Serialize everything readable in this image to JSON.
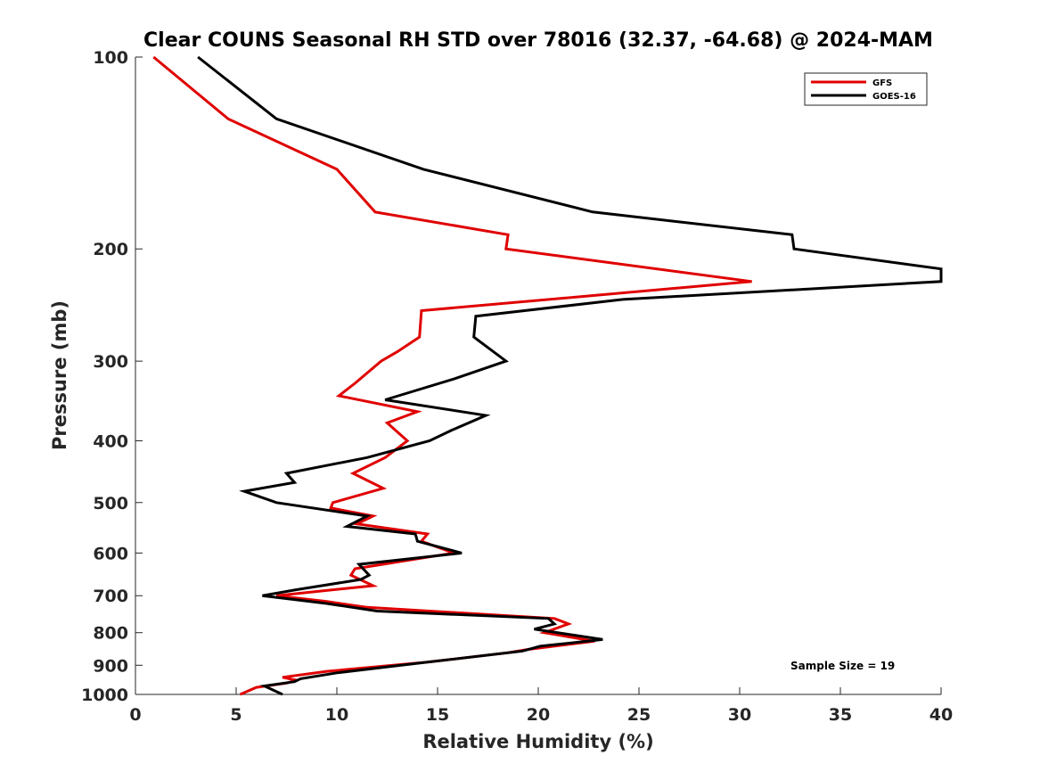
{
  "chart_data": {
    "type": "line",
    "title": "Clear COUNS Seasonal RH STD over 78016 (32.37, -64.68) @ 2024-MAM",
    "xlabel": "Relative Humidity (%)",
    "ylabel": "Pressure (mb)",
    "xlim": [
      0,
      40
    ],
    "ylim": [
      100,
      1000
    ],
    "yscale": "log",
    "y_reversed": true,
    "x_ticks": [
      0,
      5,
      10,
      15,
      20,
      25,
      30,
      35,
      40
    ],
    "y_ticks": [
      100,
      200,
      300,
      400,
      500,
      600,
      700,
      800,
      900,
      1000
    ],
    "grid": false,
    "legend": {
      "position": "top-right",
      "entries": [
        "GFS",
        "GOES-16"
      ]
    },
    "annotation": "Sample Size = 19",
    "series": [
      {
        "name": "GFS",
        "color": "#e00000",
        "points": [
          [
            0.9,
            100
          ],
          [
            4.6,
            125
          ],
          [
            10.0,
            150
          ],
          [
            11.9,
            175
          ],
          [
            18.5,
            190
          ],
          [
            18.4,
            200
          ],
          [
            30.6,
            225
          ],
          [
            14.2,
            250
          ],
          [
            14.1,
            275
          ],
          [
            13.0,
            290
          ],
          [
            12.2,
            300
          ],
          [
            10.9,
            325
          ],
          [
            10.1,
            340
          ],
          [
            14.0,
            360
          ],
          [
            12.5,
            375
          ],
          [
            13.5,
            400
          ],
          [
            12.4,
            425
          ],
          [
            10.8,
            450
          ],
          [
            12.3,
            475
          ],
          [
            9.8,
            500
          ],
          [
            9.7,
            510
          ],
          [
            11.8,
            525
          ],
          [
            11.0,
            540
          ],
          [
            14.5,
            560
          ],
          [
            14.2,
            575
          ],
          [
            15.8,
            600
          ],
          [
            10.9,
            635
          ],
          [
            10.7,
            650
          ],
          [
            11.8,
            675
          ],
          [
            7.0,
            700
          ],
          [
            9.5,
            715
          ],
          [
            11.5,
            730
          ],
          [
            20.8,
            760
          ],
          [
            21.5,
            775
          ],
          [
            20.3,
            800
          ],
          [
            22.8,
            825
          ],
          [
            19.5,
            850
          ],
          [
            18.5,
            860
          ],
          [
            14.5,
            890
          ],
          [
            9.5,
            920
          ],
          [
            7.3,
            940
          ],
          [
            8.0,
            950
          ],
          [
            7.5,
            960
          ],
          [
            6.0,
            975
          ],
          [
            5.2,
            1000
          ]
        ]
      },
      {
        "name": "GOES-16",
        "color": "#000000",
        "points": [
          [
            3.1,
            100
          ],
          [
            7.0,
            125
          ],
          [
            14.3,
            150
          ],
          [
            22.7,
            175
          ],
          [
            32.6,
            190
          ],
          [
            32.7,
            200
          ],
          [
            40.0,
            215
          ],
          [
            40.0,
            225
          ],
          [
            24.2,
            240
          ],
          [
            16.9,
            255
          ],
          [
            16.8,
            275
          ],
          [
            18.4,
            300
          ],
          [
            15.8,
            320
          ],
          [
            12.4,
            345
          ],
          [
            17.4,
            365
          ],
          [
            15.7,
            385
          ],
          [
            14.6,
            400
          ],
          [
            11.5,
            425
          ],
          [
            7.5,
            450
          ],
          [
            7.9,
            465
          ],
          [
            5.4,
            480
          ],
          [
            7.0,
            500
          ],
          [
            11.5,
            525
          ],
          [
            10.5,
            545
          ],
          [
            13.9,
            560
          ],
          [
            14.0,
            575
          ],
          [
            16.2,
            600
          ],
          [
            11.1,
            625
          ],
          [
            11.6,
            650
          ],
          [
            11.2,
            660
          ],
          [
            8.0,
            685
          ],
          [
            6.3,
            700
          ],
          [
            9.5,
            720
          ],
          [
            12.0,
            740
          ],
          [
            20.5,
            760
          ],
          [
            20.8,
            775
          ],
          [
            19.8,
            790
          ],
          [
            23.2,
            820
          ],
          [
            20.1,
            840
          ],
          [
            19.2,
            855
          ],
          [
            14.5,
            890
          ],
          [
            10.0,
            925
          ],
          [
            8.2,
            945
          ],
          [
            7.9,
            955
          ],
          [
            6.4,
            970
          ],
          [
            7.3,
            1000
          ]
        ]
      }
    ]
  }
}
